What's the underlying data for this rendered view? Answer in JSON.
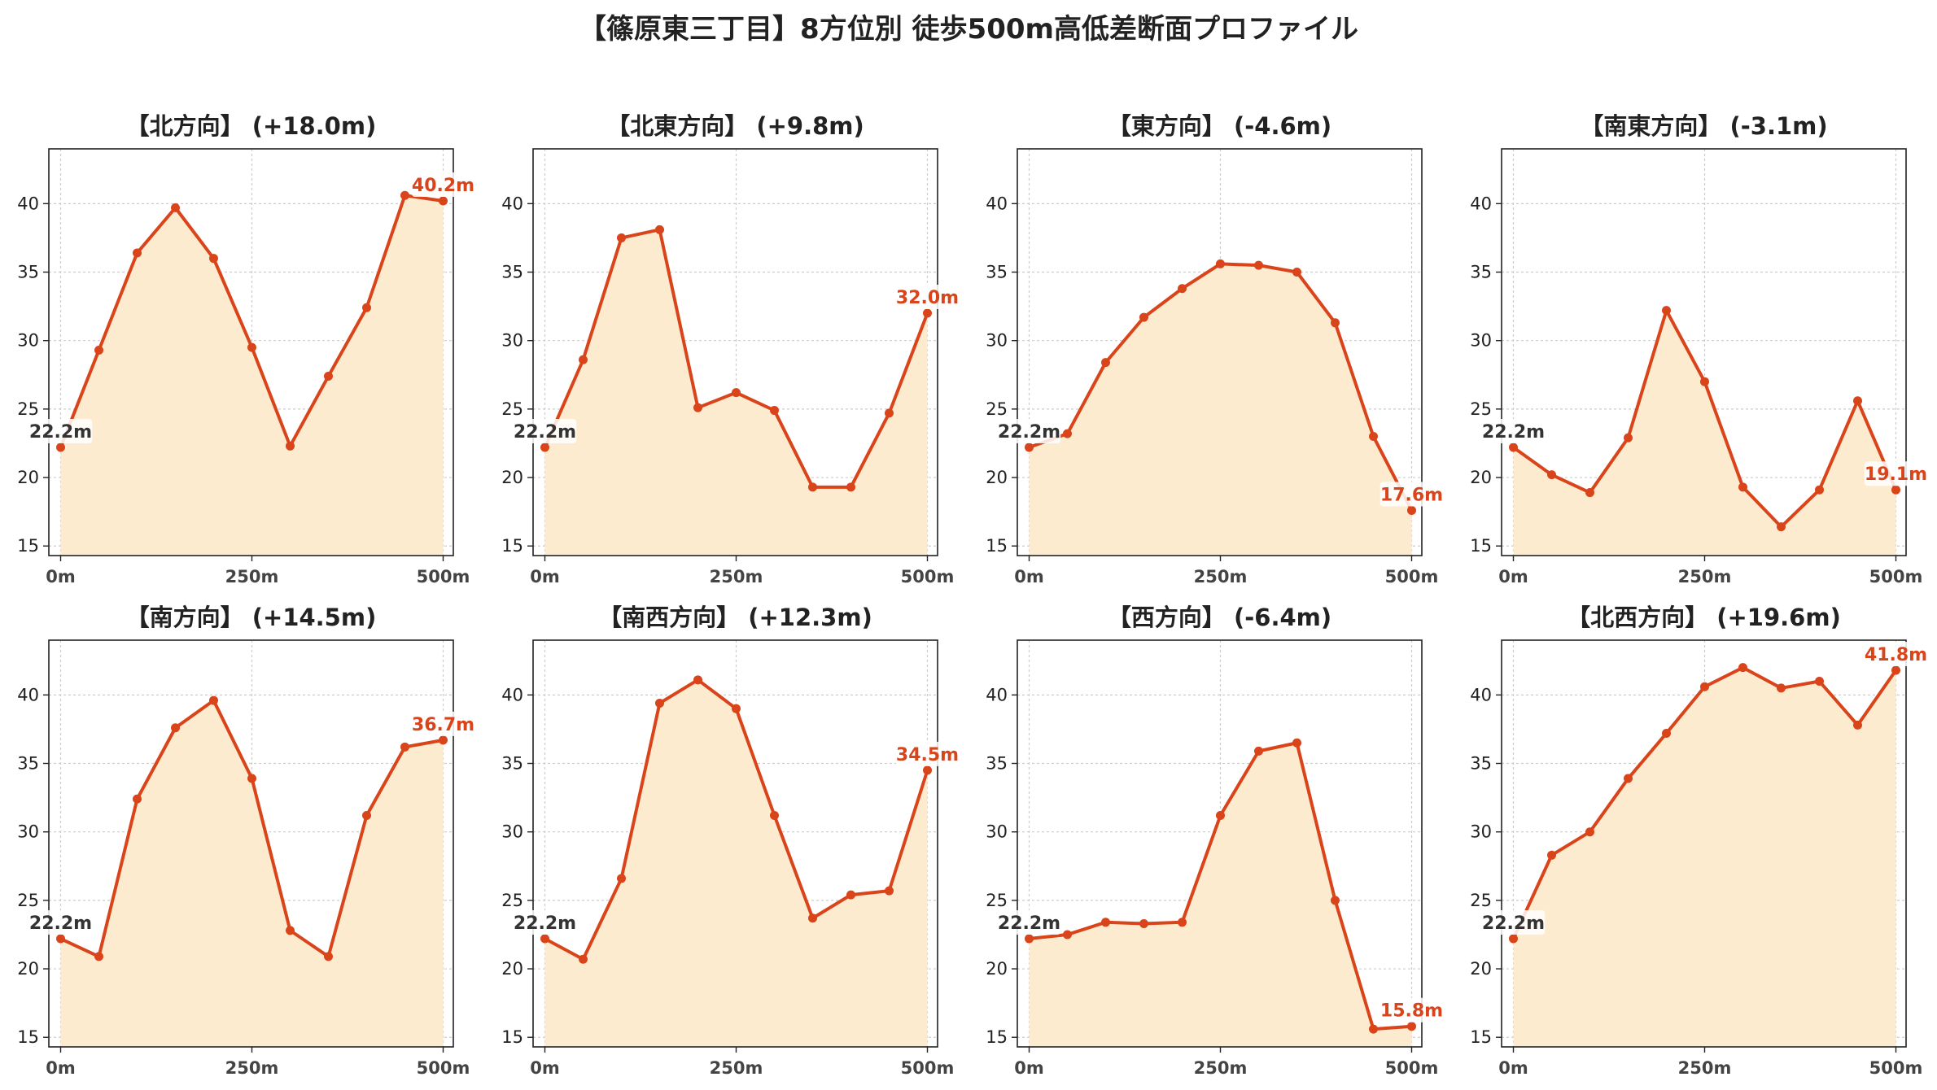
{
  "title": "【篠原東三丁目】8方位別 徒歩500m高低差断面プロファイル",
  "colors": {
    "line": "#d9441a",
    "fill": "#fdebd0",
    "start_label": "#333333",
    "end_label": "#d9441a"
  },
  "chart_data": [
    {
      "type": "area",
      "title": "【北方向】 (+18.0m)",
      "x": [
        0,
        50,
        100,
        150,
        200,
        250,
        300,
        350,
        400,
        450,
        500
      ],
      "values": [
        22.2,
        29.3,
        36.4,
        39.7,
        36.0,
        29.5,
        22.3,
        27.4,
        32.4,
        40.6,
        40.2
      ],
      "xticks": [
        "0m",
        "250m",
        "500m"
      ],
      "ylim": [
        14.3,
        44.0
      ],
      "yticks": [
        15,
        20,
        25,
        30,
        35,
        40
      ],
      "start_label": "22.2m",
      "end_label": "40.2m",
      "grid": true
    },
    {
      "type": "area",
      "title": "【北東方向】 (+9.8m)",
      "x": [
        0,
        50,
        100,
        150,
        200,
        250,
        300,
        350,
        400,
        450,
        500
      ],
      "values": [
        22.2,
        28.6,
        37.5,
        38.1,
        25.1,
        26.2,
        24.9,
        19.3,
        19.3,
        24.7,
        32.0
      ],
      "xticks": [
        "0m",
        "250m",
        "500m"
      ],
      "ylim": [
        14.3,
        44.0
      ],
      "yticks": [
        15,
        20,
        25,
        30,
        35,
        40
      ],
      "start_label": "22.2m",
      "end_label": "32.0m",
      "grid": true
    },
    {
      "type": "area",
      "title": "【東方向】 (-4.6m)",
      "x": [
        0,
        50,
        100,
        150,
        200,
        250,
        300,
        350,
        400,
        450,
        500
      ],
      "values": [
        22.2,
        23.2,
        28.4,
        31.7,
        33.8,
        35.6,
        35.5,
        35.0,
        31.3,
        23.0,
        17.6
      ],
      "xticks": [
        "0m",
        "250m",
        "500m"
      ],
      "ylim": [
        14.3,
        44.0
      ],
      "yticks": [
        15,
        20,
        25,
        30,
        35,
        40
      ],
      "start_label": "22.2m",
      "end_label": "17.6m",
      "grid": true
    },
    {
      "type": "area",
      "title": "【南東方向】 (-3.1m)",
      "x": [
        0,
        50,
        100,
        150,
        200,
        250,
        300,
        350,
        400,
        450,
        500
      ],
      "values": [
        22.2,
        20.2,
        18.9,
        22.9,
        32.2,
        27.0,
        19.3,
        16.4,
        19.1,
        25.6,
        19.1
      ],
      "xticks": [
        "0m",
        "250m",
        "500m"
      ],
      "ylim": [
        14.3,
        44.0
      ],
      "yticks": [
        15,
        20,
        25,
        30,
        35,
        40
      ],
      "start_label": "22.2m",
      "end_label": "19.1m",
      "grid": true
    },
    {
      "type": "area",
      "title": "【南方向】 (+14.5m)",
      "x": [
        0,
        50,
        100,
        150,
        200,
        250,
        300,
        350,
        400,
        450,
        500
      ],
      "values": [
        22.2,
        20.9,
        32.4,
        37.6,
        39.6,
        33.9,
        22.8,
        20.9,
        31.2,
        36.2,
        36.7
      ],
      "xticks": [
        "0m",
        "250m",
        "500m"
      ],
      "ylim": [
        14.3,
        44.0
      ],
      "yticks": [
        15,
        20,
        25,
        30,
        35,
        40
      ],
      "start_label": "22.2m",
      "end_label": "36.7m",
      "grid": true
    },
    {
      "type": "area",
      "title": "【南西方向】 (+12.3m)",
      "x": [
        0,
        50,
        100,
        150,
        200,
        250,
        300,
        350,
        400,
        450,
        500
      ],
      "values": [
        22.2,
        20.7,
        26.6,
        39.4,
        41.1,
        39.0,
        31.2,
        23.7,
        25.4,
        25.7,
        34.5
      ],
      "xticks": [
        "0m",
        "250m",
        "500m"
      ],
      "ylim": [
        14.3,
        44.0
      ],
      "yticks": [
        15,
        20,
        25,
        30,
        35,
        40
      ],
      "start_label": "22.2m",
      "end_label": "34.5m",
      "grid": true
    },
    {
      "type": "area",
      "title": "【西方向】 (-6.4m)",
      "x": [
        0,
        50,
        100,
        150,
        200,
        250,
        300,
        350,
        400,
        450,
        500
      ],
      "values": [
        22.2,
        22.5,
        23.4,
        23.3,
        23.4,
        31.2,
        35.9,
        36.5,
        25.0,
        15.6,
        15.8
      ],
      "xticks": [
        "0m",
        "250m",
        "500m"
      ],
      "ylim": [
        14.3,
        44.0
      ],
      "yticks": [
        15,
        20,
        25,
        30,
        35,
        40
      ],
      "start_label": "22.2m",
      "end_label": "15.8m",
      "grid": true
    },
    {
      "type": "area",
      "title": "【北西方向】 (+19.6m)",
      "x": [
        0,
        50,
        100,
        150,
        200,
        250,
        300,
        350,
        400,
        450,
        500
      ],
      "values": [
        22.2,
        28.3,
        30.0,
        33.9,
        37.2,
        40.6,
        42.0,
        40.5,
        41.0,
        37.8,
        41.8
      ],
      "xticks": [
        "0m",
        "250m",
        "500m"
      ],
      "ylim": [
        14.3,
        44.0
      ],
      "yticks": [
        15,
        20,
        25,
        30,
        35,
        40
      ],
      "start_label": "22.2m",
      "end_label": "41.8m",
      "grid": true
    }
  ]
}
